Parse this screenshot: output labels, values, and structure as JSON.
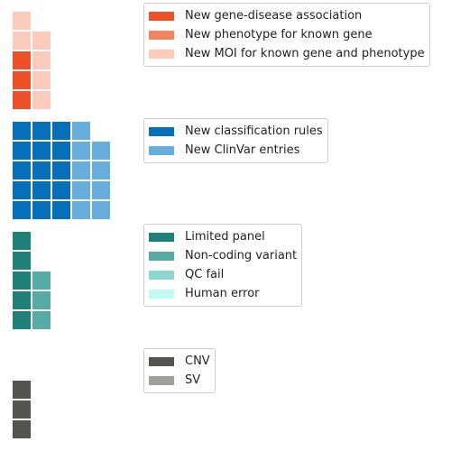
{
  "chart_data": [
    {
      "type": "waffle",
      "group": "phenotype",
      "series": [
        {
          "name": "New gene-disease association",
          "value": 3,
          "color": "#EE5127"
        },
        {
          "name": "New phenotype for known gene",
          "value": 0,
          "color": "#F28463"
        },
        {
          "name": "New MOI for known gene and phenotype",
          "value": 6,
          "color": "#FCCBBC"
        }
      ],
      "columns": [
        [
          "New gene-disease association",
          "New gene-disease association",
          "New gene-disease association",
          "New MOI for known gene and phenotype",
          "New MOI for known gene and phenotype"
        ],
        [
          "New MOI for known gene and phenotype",
          "New MOI for known gene and phenotype",
          "New MOI for known gene and phenotype",
          "New MOI for known gene and phenotype"
        ]
      ]
    },
    {
      "type": "waffle",
      "group": "classification",
      "series": [
        {
          "name": "New classification rules",
          "value": 15,
          "color": "#0570B9"
        },
        {
          "name": "New ClinVar entries",
          "value": 9,
          "color": "#68AEDD"
        }
      ],
      "columns": [
        [
          "New classification rules",
          "New classification rules",
          "New classification rules",
          "New classification rules",
          "New classification rules"
        ],
        [
          "New classification rules",
          "New classification rules",
          "New classification rules",
          "New classification rules",
          "New classification rules"
        ],
        [
          "New classification rules",
          "New classification rules",
          "New classification rules",
          "New classification rules",
          "New classification rules"
        ],
        [
          "New ClinVar entries",
          "New ClinVar entries",
          "New ClinVar entries",
          "New ClinVar entries",
          "New ClinVar entries"
        ],
        [
          "New ClinVar entries",
          "New ClinVar entries",
          "New ClinVar entries",
          "New ClinVar entries"
        ]
      ]
    },
    {
      "type": "waffle",
      "group": "technical",
      "series": [
        {
          "name": "Limited panel",
          "value": 5,
          "color": "#1F8079"
        },
        {
          "name": "Non-coding variant",
          "value": 3,
          "color": "#56ABA5"
        },
        {
          "name": "QC fail",
          "value": 0,
          "color": "#8ED5CF"
        },
        {
          "name": "Human error",
          "value": 0,
          "color": "#C2FBF4"
        }
      ],
      "columns": [
        [
          "Limited panel",
          "Limited panel",
          "Limited panel",
          "Limited panel",
          "Limited panel"
        ],
        [
          "Non-coding variant",
          "Non-coding variant",
          "Non-coding variant"
        ]
      ]
    },
    {
      "type": "waffle",
      "group": "structural",
      "series": [
        {
          "name": "CNV",
          "value": 3,
          "color": "#53534F"
        },
        {
          "name": "SV",
          "value": 0,
          "color": "#A0A09A"
        }
      ],
      "columns": [
        [
          "CNV",
          "CNV",
          "CNV"
        ]
      ]
    }
  ]
}
